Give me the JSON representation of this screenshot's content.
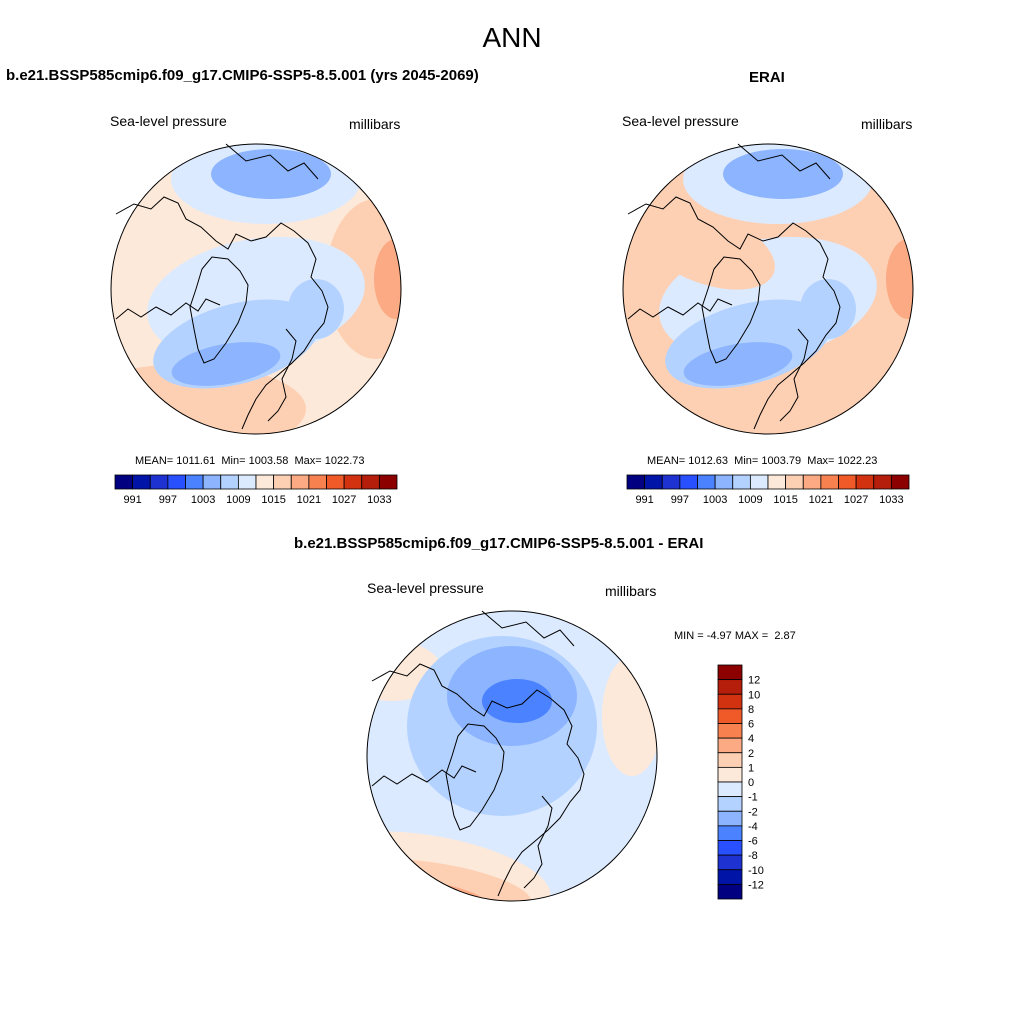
{
  "main_title": "ANN",
  "colors": {
    "palette": [
      "#000080",
      "#0014a8",
      "#1e32d2",
      "#2850ff",
      "#4b82ff",
      "#8cb4ff",
      "#b4d2ff",
      "#dceaff",
      "#fde9d9",
      "#fdd0b4",
      "#fbaa84",
      "#f8824f",
      "#f05a28",
      "#d23210",
      "#b41e0a",
      "#8c0000"
    ],
    "diff_palette": [
      "#000080",
      "#0014a8",
      "#1e32d2",
      "#2850ff",
      "#4b82ff",
      "#8cb4ff",
      "#b4d2ff",
      "#dceaff",
      "#fde9d9",
      "#fdd0b4",
      "#fbaa84",
      "#f8824f",
      "#f05a28",
      "#d23210",
      "#b41e0a",
      "#8c0000"
    ]
  },
  "chart_data": [
    {
      "type": "heatmap",
      "title": "b.e21.BSSP585cmip6.f09_g17.CMIP6-SSP5-8.5.001 (yrs 2045-2069)",
      "variable": "Sea-level pressure",
      "units": "millibars",
      "mean_label": "MEAN=",
      "mean": 1011.61,
      "min_label": "Min=",
      "min": 1003.58,
      "max_label": "Max=",
      "max": 1022.73,
      "colorbar_ticks": [
        "991",
        "997",
        "1003",
        "1009",
        "1015",
        "1021",
        "1027",
        "1033"
      ],
      "projection": "north polar stereographic"
    },
    {
      "type": "heatmap",
      "title": "ERAI",
      "variable": "Sea-level pressure",
      "units": "millibars",
      "mean_label": "MEAN=",
      "mean": 1012.63,
      "min_label": "Min=",
      "min": 1003.79,
      "max_label": "Max=",
      "max": 1022.23,
      "colorbar_ticks": [
        "991",
        "997",
        "1003",
        "1009",
        "1015",
        "1021",
        "1027",
        "1033"
      ],
      "projection": "north polar stereographic"
    },
    {
      "type": "heatmap",
      "title": "b.e21.BSSP585cmip6.f09_g17.CMIP6-SSP5-8.5.001 - ERAI",
      "variable": "Sea-level pressure",
      "units": "millibars",
      "min_label": "MIN =",
      "min": -4.97,
      "max_label": "MAX =",
      "max": 2.87,
      "colorbar_ticks": [
        "12",
        "10",
        "8",
        "6",
        "4",
        "2",
        "1",
        "0",
        "-1",
        "-2",
        "-4",
        "-6",
        "-8",
        "-10",
        "-12"
      ],
      "projection": "north polar stereographic"
    }
  ]
}
